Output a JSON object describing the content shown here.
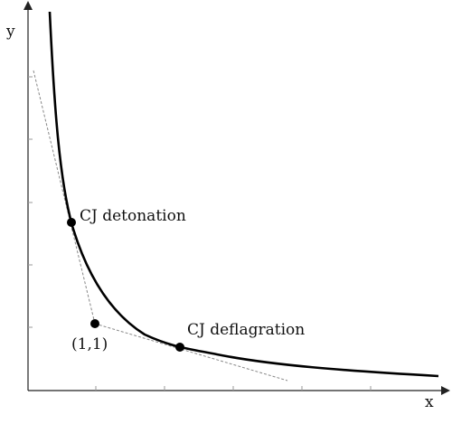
{
  "diagram": {
    "axes": {
      "x_label": "x",
      "y_label": "y"
    },
    "points": {
      "origin": {
        "label": "(1,1)"
      },
      "cj_detonation": {
        "label": "CJ detonation"
      },
      "cj_deflagration": {
        "label": "CJ deflagration"
      }
    },
    "colors": {
      "curve": "#000000",
      "axes": "#222222",
      "tangent_lines": "#888888",
      "points": "#000000"
    }
  }
}
